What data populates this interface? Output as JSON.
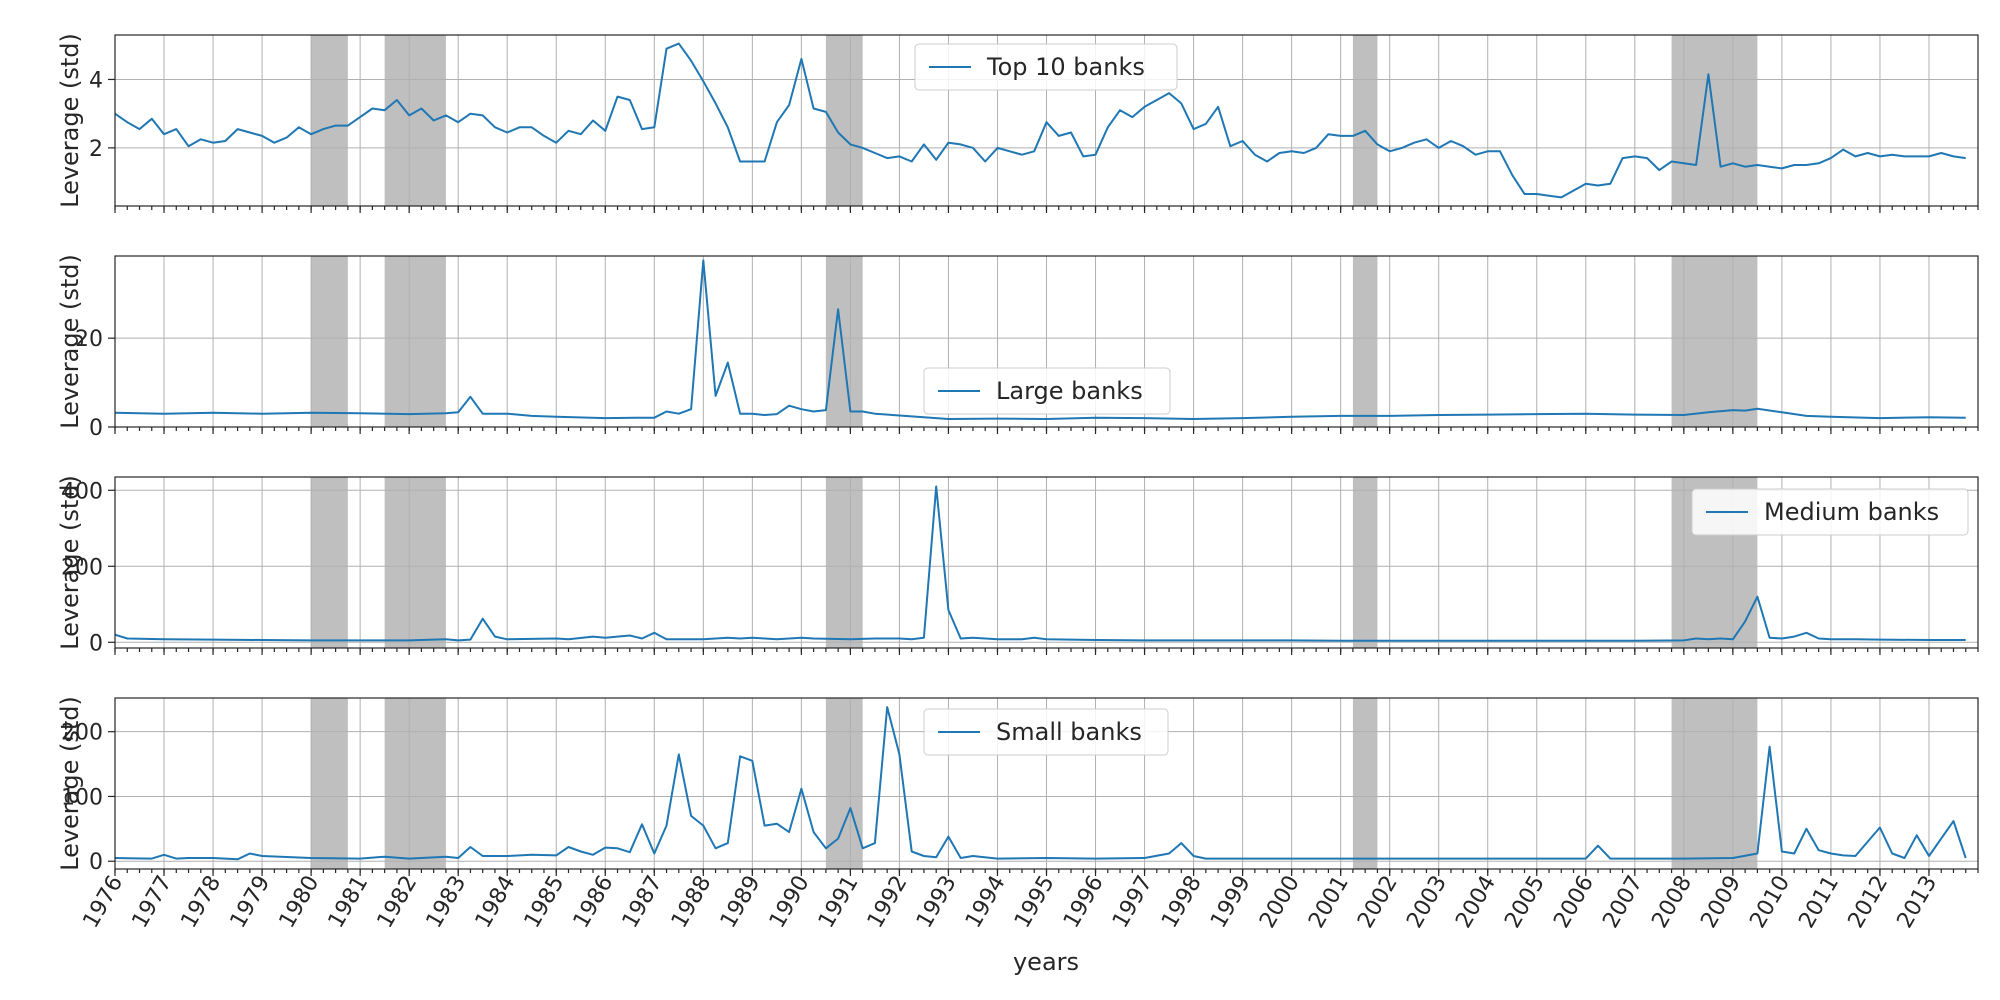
{
  "colors": {
    "line": "#1f77b4",
    "band": "#808080",
    "grid": "#b0b0b0"
  },
  "chart_data": {
    "type": "line",
    "xlabel": "years",
    "x_range": [
      1976.0,
      2014.0
    ],
    "x_ticks": [
      1976,
      1977,
      1978,
      1979,
      1980,
      1981,
      1982,
      1983,
      1984,
      1985,
      1986,
      1987,
      1988,
      1989,
      1990,
      1991,
      1992,
      1993,
      1994,
      1995,
      1996,
      1997,
      1998,
      1999,
      2000,
      2001,
      2002,
      2003,
      2004,
      2005,
      2006,
      2007,
      2008,
      2009,
      2010,
      2011,
      2012,
      2013
    ],
    "recessions": [
      [
        1980.0,
        1980.75
      ],
      [
        1981.5,
        1982.75
      ],
      [
        1990.5,
        1991.25
      ],
      [
        2001.25,
        2001.75
      ],
      [
        2007.75,
        2009.5
      ]
    ],
    "grid": true,
    "panels": [
      {
        "ylabel": "Leverage (std)",
        "legend": "Top 10 banks",
        "legend_position": "upper-center",
        "ylim": [
          0.3,
          5.3
        ],
        "yticks": [
          2,
          4
        ],
        "x": [
          1976.0,
          1976.25,
          1976.5,
          1976.75,
          1977.0,
          1977.25,
          1977.5,
          1977.75,
          1978.0,
          1978.25,
          1978.5,
          1978.75,
          1979.0,
          1979.25,
          1979.5,
          1979.75,
          1980.0,
          1980.25,
          1980.5,
          1980.75,
          1981.0,
          1981.25,
          1981.5,
          1981.75,
          1982.0,
          1982.25,
          1982.5,
          1982.75,
          1983.0,
          1983.25,
          1983.5,
          1983.75,
          1984.0,
          1984.25,
          1984.5,
          1984.75,
          1985.0,
          1985.25,
          1985.5,
          1985.75,
          1986.0,
          1986.25,
          1986.5,
          1986.75,
          1987.0,
          1987.25,
          1987.5,
          1987.75,
          1988.0,
          1988.25,
          1988.5,
          1988.75,
          1989.0,
          1989.25,
          1989.5,
          1989.75,
          1990.0,
          1990.25,
          1990.5,
          1990.75,
          1991.0,
          1991.25,
          1991.5,
          1991.75,
          1992.0,
          1992.25,
          1992.5,
          1992.75,
          1993.0,
          1993.25,
          1993.5,
          1993.75,
          1994.0,
          1994.25,
          1994.5,
          1994.75,
          1995.0,
          1995.25,
          1995.5,
          1995.75,
          1996.0,
          1996.25,
          1996.5,
          1996.75,
          1997.0,
          1997.25,
          1997.5,
          1997.75,
          1998.0,
          1998.25,
          1998.5,
          1998.75,
          1999.0,
          1999.25,
          1999.5,
          1999.75,
          2000.0,
          2000.25,
          2000.5,
          2000.75,
          2001.0,
          2001.25,
          2001.5,
          2001.75,
          2002.0,
          2002.25,
          2002.5,
          2002.75,
          2003.0,
          2003.25,
          2003.5,
          2003.75,
          2004.0,
          2004.25,
          2004.5,
          2004.75,
          2005.0,
          2005.25,
          2005.5,
          2005.75,
          2006.0,
          2006.25,
          2006.5,
          2006.75,
          2007.0,
          2007.25,
          2007.5,
          2007.75,
          2008.0,
          2008.25,
          2008.5,
          2008.75,
          2009.0,
          2009.25,
          2009.5,
          2009.75,
          2010.0,
          2010.25,
          2010.5,
          2010.75,
          2011.0,
          2011.25,
          2011.5,
          2011.75,
          2012.0,
          2012.25,
          2012.5,
          2012.75,
          2013.0,
          2013.25,
          2013.5,
          2013.75
        ],
        "y": [
          3.0,
          2.75,
          2.55,
          2.85,
          2.4,
          2.55,
          2.05,
          2.25,
          2.15,
          2.2,
          2.55,
          2.45,
          2.35,
          2.15,
          2.3,
          2.6,
          2.4,
          2.55,
          2.65,
          2.65,
          2.9,
          3.15,
          3.1,
          3.4,
          2.95,
          3.15,
          2.8,
          2.95,
          2.75,
          3.0,
          2.95,
          2.6,
          2.45,
          2.6,
          2.6,
          2.35,
          2.15,
          2.5,
          2.4,
          2.8,
          2.5,
          3.5,
          3.4,
          2.55,
          2.6,
          4.9,
          5.05,
          4.55,
          3.95,
          3.3,
          2.6,
          1.6,
          1.6,
          1.6,
          2.75,
          3.25,
          4.6,
          3.15,
          3.05,
          2.45,
          2.1,
          2.0,
          1.85,
          1.7,
          1.75,
          1.6,
          2.1,
          1.65,
          2.15,
          2.1,
          2.0,
          1.6,
          2.0,
          1.9,
          1.8,
          1.9,
          2.75,
          2.35,
          2.45,
          1.75,
          1.8,
          2.6,
          3.1,
          2.9,
          3.2,
          3.4,
          3.6,
          3.3,
          2.55,
          2.7,
          3.2,
          2.05,
          2.2,
          1.8,
          1.6,
          1.85,
          1.9,
          1.85,
          2.0,
          2.4,
          2.35,
          2.35,
          2.5,
          2.1,
          1.9,
          2.0,
          2.15,
          2.25,
          2.0,
          2.2,
          2.05,
          1.8,
          1.9,
          1.9,
          1.2,
          0.65,
          0.65,
          0.6,
          0.55,
          0.75,
          0.95,
          0.9,
          0.95,
          1.7,
          1.75,
          1.7,
          1.35,
          1.6,
          1.55,
          1.5,
          4.15,
          1.45,
          1.55,
          1.45,
          1.5,
          1.45,
          1.4,
          1.5,
          1.5,
          1.55,
          1.7,
          1.95,
          1.75,
          1.85,
          1.75,
          1.8,
          1.75,
          1.75,
          1.75,
          1.85,
          1.75,
          1.7
        ]
      },
      {
        "ylabel": "Leverage (std)",
        "legend": "Large banks",
        "legend_position": "lower-center",
        "ylim": [
          0,
          38.5
        ],
        "yticks": [
          0,
          20
        ],
        "x": [
          1976.0,
          1977.0,
          1978.0,
          1979.0,
          1980.0,
          1981.0,
          1982.0,
          1982.75,
          1983.0,
          1983.25,
          1983.5,
          1984.0,
          1984.5,
          1985.0,
          1986.0,
          1986.75,
          1987.0,
          1987.25,
          1987.5,
          1987.75,
          1988.0,
          1988.25,
          1988.5,
          1988.75,
          1989.0,
          1989.25,
          1989.5,
          1989.75,
          1990.0,
          1990.25,
          1990.5,
          1990.75,
          1991.0,
          1991.25,
          1991.5,
          1992.0,
          1993.0,
          1994.0,
          1995.0,
          1996.0,
          1997.0,
          1998.0,
          1999.0,
          2000.0,
          2001.0,
          2002.0,
          2003.0,
          2004.0,
          2005.0,
          2006.0,
          2007.0,
          2008.0,
          2008.5,
          2009.0,
          2009.25,
          2009.5,
          2010.0,
          2010.5,
          2011.0,
          2012.0,
          2013.0,
          2013.75
        ],
        "y": [
          3.2,
          3.0,
          3.2,
          3.0,
          3.2,
          3.1,
          2.9,
          3.1,
          3.3,
          6.8,
          3.0,
          3.0,
          2.5,
          2.3,
          2.0,
          2.1,
          2.1,
          3.5,
          3.0,
          4.0,
          37.5,
          7.0,
          14.5,
          3.0,
          3.0,
          2.7,
          2.9,
          4.8,
          4.0,
          3.5,
          3.8,
          26.5,
          3.5,
          3.5,
          3.0,
          2.6,
          1.8,
          1.9,
          1.8,
          2.1,
          2.0,
          1.8,
          2.0,
          2.3,
          2.5,
          2.5,
          2.7,
          2.8,
          2.9,
          3.0,
          2.8,
          2.7,
          3.3,
          3.8,
          3.7,
          4.1,
          3.3,
          2.5,
          2.3,
          2.0,
          2.2,
          2.1
        ]
      },
      {
        "ylabel": "Leverage (std)",
        "legend": "Medium banks",
        "legend_position": "upper-right",
        "ylim": [
          -15,
          435
        ],
        "yticks": [
          0,
          200,
          400
        ],
        "x": [
          1976.0,
          1976.25,
          1977.0,
          1978.0,
          1979.0,
          1980.0,
          1981.0,
          1982.0,
          1982.75,
          1983.0,
          1983.25,
          1983.5,
          1983.75,
          1984.0,
          1985.0,
          1985.25,
          1985.75,
          1986.0,
          1986.5,
          1986.75,
          1987.0,
          1987.25,
          1988.0,
          1988.25,
          1988.5,
          1988.75,
          1989.0,
          1989.25,
          1989.5,
          1990.0,
          1990.25,
          1991.0,
          1991.5,
          1992.0,
          1992.25,
          1992.5,
          1992.75,
          1993.0,
          1993.25,
          1993.5,
          1993.75,
          1994.0,
          1994.5,
          1994.75,
          1995.0,
          1996.0,
          1997.0,
          1998.0,
          1999.0,
          2000.0,
          2001.0,
          2002.0,
          2003.0,
          2004.0,
          2005.0,
          2006.0,
          2007.0,
          2008.0,
          2008.25,
          2008.5,
          2008.75,
          2009.0,
          2009.25,
          2009.5,
          2009.75,
          2010.0,
          2010.25,
          2010.5,
          2010.75,
          2011.0,
          2011.5,
          2012.0,
          2013.0,
          2013.75
        ],
        "y": [
          20,
          10,
          8,
          7,
          6,
          5,
          5,
          5,
          8,
          5,
          7,
          62,
          15,
          8,
          10,
          8,
          15,
          12,
          18,
          10,
          25,
          8,
          8,
          10,
          12,
          10,
          12,
          10,
          8,
          12,
          10,
          8,
          10,
          10,
          8,
          12,
          410,
          85,
          10,
          12,
          10,
          8,
          8,
          12,
          8,
          6,
          5,
          5,
          5,
          5,
          4,
          4,
          4,
          4,
          4,
          4,
          4,
          5,
          10,
          8,
          10,
          8,
          55,
          120,
          12,
          10,
          15,
          25,
          10,
          8,
          8,
          7,
          6,
          6
        ]
      },
      {
        "ylabel": "Leverage (std)",
        "legend": "Small banks",
        "legend_position": "upper-center",
        "ylim": [
          -12,
          252
        ],
        "yticks": [
          0,
          100,
          200
        ],
        "x": [
          1976.0,
          1976.75,
          1977.0,
          1977.25,
          1977.5,
          1978.0,
          1978.5,
          1978.75,
          1979.0,
          1980.0,
          1981.0,
          1981.5,
          1982.0,
          1982.75,
          1983.0,
          1983.25,
          1983.5,
          1984.0,
          1984.5,
          1985.0,
          1985.25,
          1985.5,
          1985.75,
          1986.0,
          1986.25,
          1986.5,
          1986.75,
          1987.0,
          1987.25,
          1987.5,
          1987.75,
          1988.0,
          1988.25,
          1988.5,
          1988.75,
          1989.0,
          1989.25,
          1989.5,
          1989.75,
          1990.0,
          1990.25,
          1990.5,
          1990.75,
          1991.0,
          1991.25,
          1991.5,
          1991.75,
          1992.0,
          1992.25,
          1992.5,
          1992.75,
          1993.0,
          1993.25,
          1993.5,
          1994.0,
          1995.0,
          1996.0,
          1997.0,
          1997.5,
          1997.75,
          1998.0,
          1998.25,
          1998.5,
          1999.0,
          2000.0,
          2001.0,
          2002.0,
          2003.0,
          2004.0,
          2005.0,
          2006.0,
          2006.25,
          2006.5,
          2007.0,
          2008.0,
          2009.0,
          2009.5,
          2009.75,
          2010.0,
          2010.25,
          2010.5,
          2010.75,
          2011.0,
          2011.25,
          2011.5,
          2012.0,
          2012.25,
          2012.5,
          2012.75,
          2013.0,
          2013.25,
          2013.5,
          2013.75
        ],
        "y": [
          5,
          4,
          10,
          4,
          5,
          5,
          3,
          12,
          8,
          5,
          4,
          7,
          4,
          7,
          5,
          22,
          8,
          8,
          10,
          9,
          22,
          15,
          10,
          21,
          20,
          14,
          57,
          12,
          55,
          165,
          70,
          55,
          20,
          28,
          162,
          155,
          55,
          58,
          45,
          112,
          45,
          20,
          35,
          82,
          20,
          28,
          238,
          165,
          15,
          8,
          6,
          38,
          5,
          8,
          4,
          5,
          4,
          5,
          12,
          28,
          8,
          4,
          4,
          4,
          4,
          4,
          4,
          4,
          4,
          4,
          4,
          24,
          4,
          4,
          4,
          5,
          12,
          177,
          15,
          12,
          50,
          17,
          12,
          9,
          8,
          52,
          12,
          5,
          40,
          8,
          35,
          62,
          5
        ]
      }
    ]
  }
}
